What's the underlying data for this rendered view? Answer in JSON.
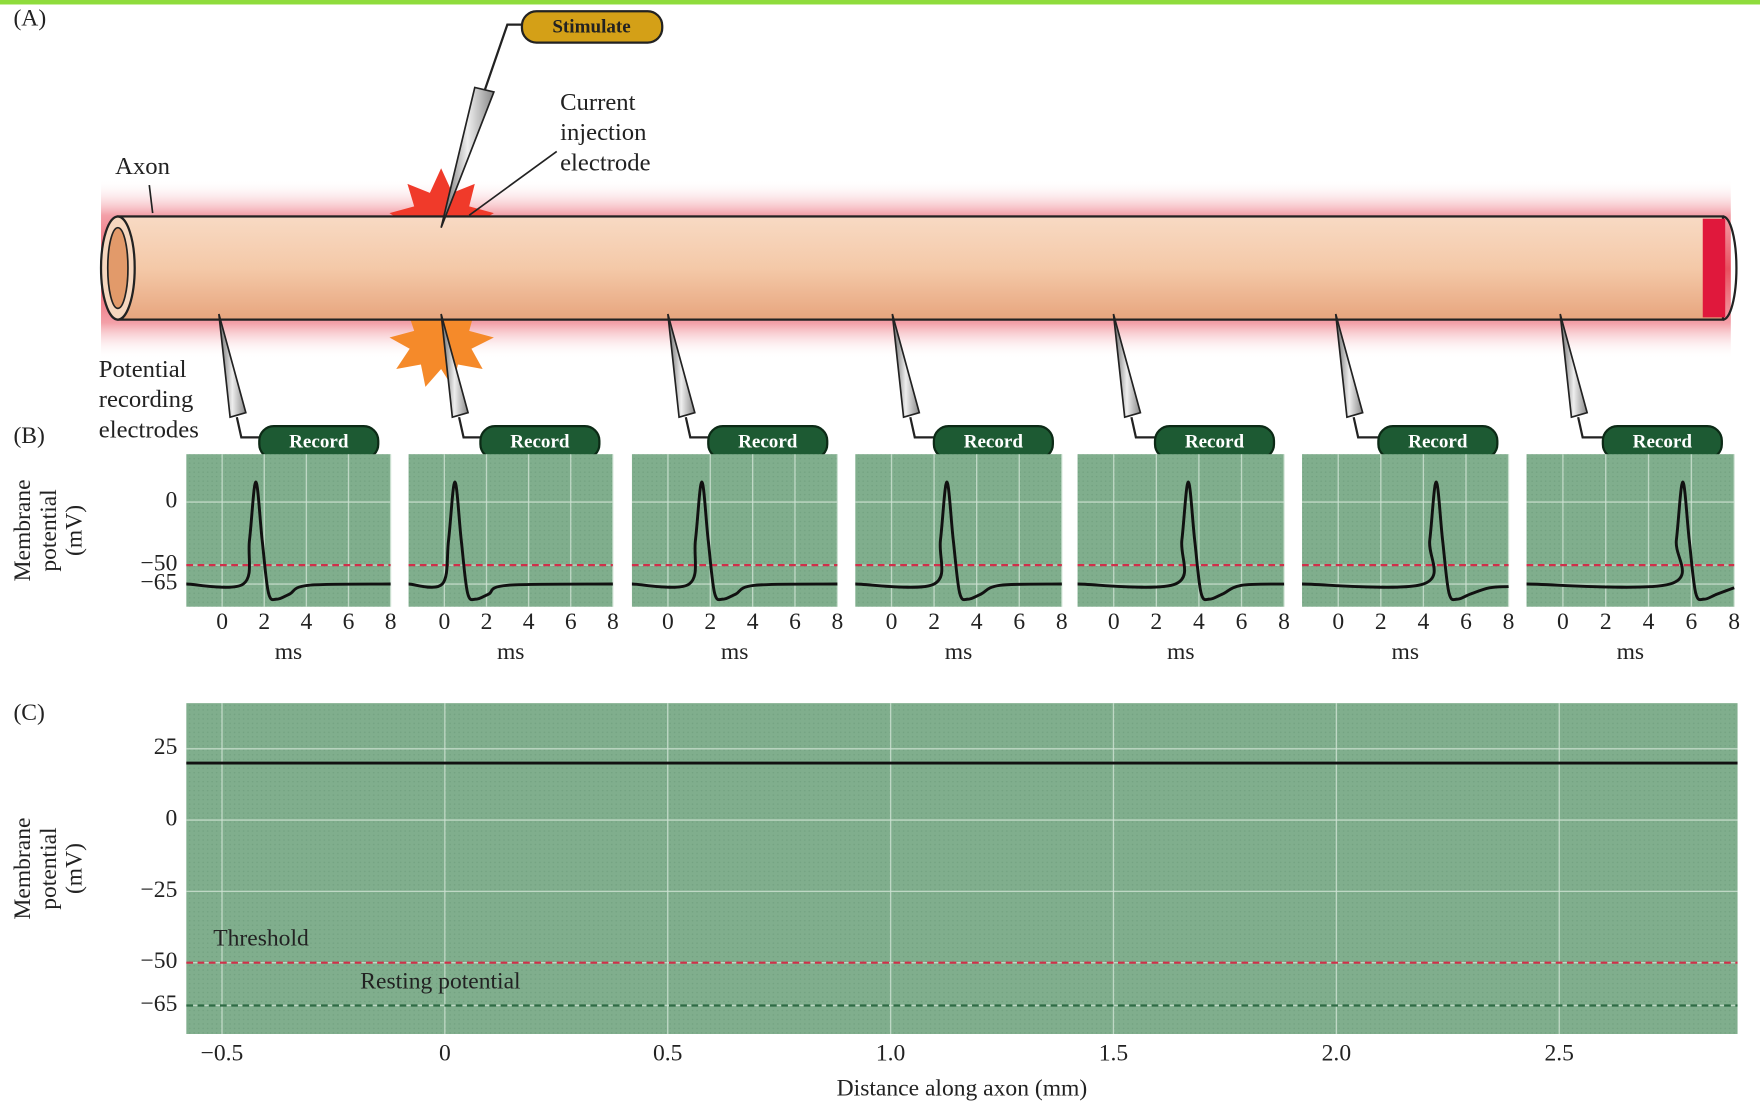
{
  "panel_labels": [
    "(A)",
    "(B)",
    "(C)"
  ],
  "diagram": {
    "stimulate": "Stimulate",
    "injection_label": [
      "Current",
      "injection",
      "electrode"
    ],
    "axon_label": "Axon",
    "recording_label": [
      "Potential",
      "recording",
      "electrodes"
    ],
    "record_labels": [
      "Record",
      "Record",
      "Record",
      "Record",
      "Record",
      "Record",
      "Record"
    ]
  },
  "chart_data": [
    {
      "type": "line",
      "x": [
        -1.7,
        1.0,
        1.3,
        1.6,
        1.9,
        2.2,
        2.6,
        3.2,
        4.1,
        8
      ],
      "series": [
        {
          "color": "#111111",
          "values": [
            -65,
            -65,
            -30,
            16,
            -30,
            -72,
            -77,
            -73,
            -66,
            -65
          ]
        }
      ],
      "xlim": [
        -1.7,
        8
      ],
      "ylim": [
        -83,
        38
      ],
      "xticks": [
        0,
        2,
        4,
        6,
        8
      ],
      "yticks": [
        0,
        {
          "value": -50,
          "label": "−50"
        },
        {
          "value": -65,
          "label": "−65"
        }
      ],
      "xlabel": "ms",
      "ylabel": [
        "Membrane",
        "potential",
        "(mV)"
      ],
      "hlines": [
        {
          "value": -50,
          "color": "#d0304a"
        }
      ]
    },
    {
      "type": "line",
      "x": [
        -1.7,
        -0.1,
        0.2,
        0.5,
        0.8,
        1.1,
        1.5,
        2.1,
        3.0,
        8
      ],
      "series": [
        {
          "color": "#111111",
          "values": [
            -65,
            -65,
            -30,
            16,
            -30,
            -72,
            -77,
            -73,
            -66,
            -65
          ]
        }
      ],
      "xlim": [
        -1.7,
        8
      ],
      "ylim": [
        -83,
        38
      ],
      "xticks": [
        0,
        2,
        4,
        6,
        8
      ],
      "xlabel": "ms",
      "hlines": [
        {
          "value": -50,
          "color": "#d0304a"
        }
      ]
    },
    {
      "type": "line",
      "x": [
        -1.7,
        1.0,
        1.3,
        1.6,
        1.9,
        2.2,
        2.6,
        3.2,
        4.1,
        8
      ],
      "series": [
        {
          "color": "#111111",
          "values": [
            -65,
            -65,
            -30,
            16,
            -30,
            -72,
            -77,
            -73,
            -66,
            -65
          ]
        }
      ],
      "xlim": [
        -1.7,
        8
      ],
      "ylim": [
        -83,
        38
      ],
      "xticks": [
        0,
        2,
        4,
        6,
        8
      ],
      "xlabel": "ms",
      "hlines": [
        {
          "value": -50,
          "color": "#d0304a"
        }
      ]
    },
    {
      "type": "line",
      "x": [
        -1.7,
        2.0,
        2.3,
        2.6,
        2.9,
        3.2,
        3.6,
        4.2,
        5.1,
        8
      ],
      "series": [
        {
          "color": "#111111",
          "values": [
            -65,
            -65,
            -30,
            16,
            -30,
            -72,
            -77,
            -73,
            -66,
            -65
          ]
        }
      ],
      "xlim": [
        -1.7,
        8
      ],
      "ylim": [
        -83,
        38
      ],
      "xticks": [
        0,
        2,
        4,
        6,
        8
      ],
      "xlabel": "ms",
      "hlines": [
        {
          "value": -50,
          "color": "#d0304a"
        }
      ]
    },
    {
      "type": "line",
      "x": [
        -1.7,
        2.9,
        3.2,
        3.5,
        3.8,
        4.1,
        4.5,
        5.1,
        6.0,
        8
      ],
      "series": [
        {
          "color": "#111111",
          "values": [
            -65,
            -65,
            -30,
            16,
            -30,
            -72,
            -77,
            -73,
            -66,
            -65
          ]
        }
      ],
      "xlim": [
        -1.7,
        8
      ],
      "ylim": [
        -83,
        38
      ],
      "xticks": [
        0,
        2,
        4,
        6,
        8
      ],
      "xlabel": "ms",
      "hlines": [
        {
          "value": -50,
          "color": "#d0304a"
        }
      ]
    },
    {
      "type": "line",
      "x": [
        -1.7,
        4.0,
        4.3,
        4.6,
        4.9,
        5.2,
        5.6,
        6.2,
        7.1,
        8
      ],
      "series": [
        {
          "color": "#111111",
          "values": [
            -65,
            -65,
            -30,
            16,
            -30,
            -72,
            -77,
            -73,
            -68,
            -67
          ]
        }
      ],
      "xlim": [
        -1.7,
        8
      ],
      "ylim": [
        -83,
        38
      ],
      "xticks": [
        0,
        2,
        4,
        6,
        8
      ],
      "xlabel": "ms",
      "hlines": [
        {
          "value": -50,
          "color": "#d0304a"
        }
      ]
    },
    {
      "type": "line",
      "x": [
        -1.7,
        5.0,
        5.3,
        5.6,
        5.9,
        6.2,
        6.6,
        7.2,
        8
      ],
      "series": [
        {
          "color": "#111111",
          "values": [
            -65,
            -65,
            -30,
            16,
            -30,
            -72,
            -77,
            -73,
            -68
          ]
        }
      ],
      "xlim": [
        -1.7,
        8
      ],
      "ylim": [
        -83,
        38
      ],
      "xticks": [
        0,
        2,
        4,
        6,
        8
      ],
      "xlabel": "ms",
      "hlines": [
        {
          "value": -50,
          "color": "#d0304a"
        }
      ]
    },
    {
      "type": "line",
      "x": [
        -0.58,
        2.9
      ],
      "series": [
        {
          "color": "#111111",
          "values": [
            20,
            20
          ]
        }
      ],
      "xlim": [
        -0.58,
        2.9
      ],
      "ylim": [
        -75,
        41
      ],
      "xticks": [
        {
          "value": -0.5,
          "label": "−0.5"
        },
        0,
        0.5,
        {
          "value": 1.0,
          "label": "1.0"
        },
        1.5,
        {
          "value": 2.0,
          "label": "2.0"
        },
        2.5
      ],
      "yticks": [
        25,
        0,
        {
          "value": -25,
          "label": "−25"
        },
        {
          "value": -50,
          "label": "−50"
        },
        {
          "value": -65,
          "label": "−65"
        }
      ],
      "xlabel": "Distance along axon (mm)",
      "ylabel": [
        "Membrane",
        "potential",
        "(mV)"
      ],
      "grid": true,
      "hlines": [
        {
          "value": -50,
          "color": "#d0304a",
          "label": "Threshold"
        },
        {
          "value": -65,
          "color": "#2f6b45",
          "label": "Resting potential"
        }
      ]
    }
  ]
}
